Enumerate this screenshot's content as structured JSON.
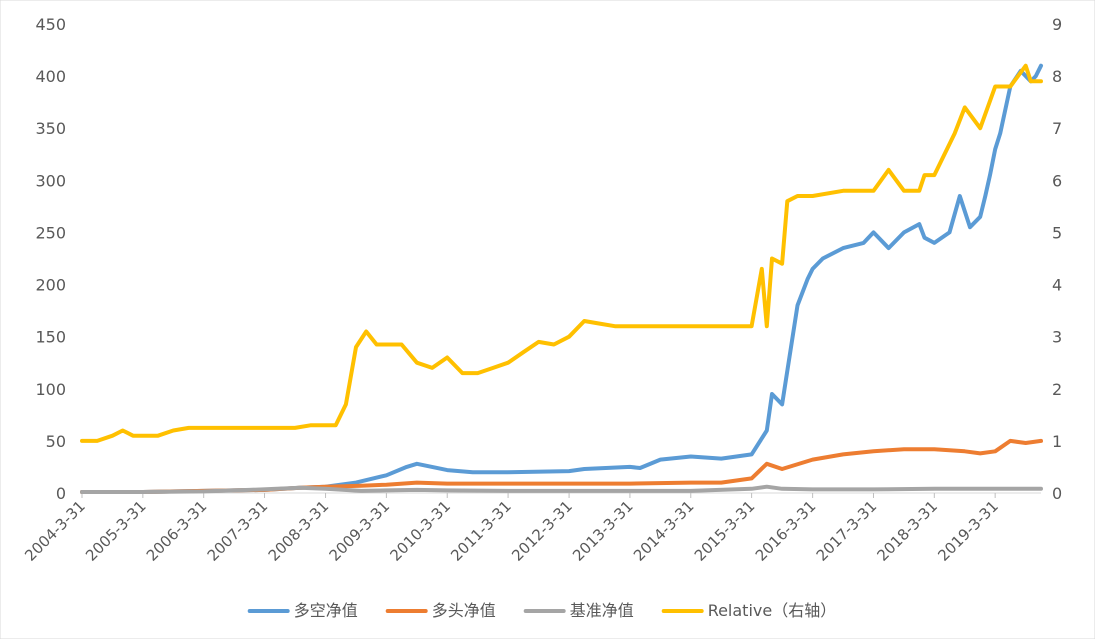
{
  "chart_data": {
    "type": "line",
    "title": "",
    "x_ticks": [
      "2004-3-31",
      "2005-3-31",
      "2006-3-31",
      "2007-3-31",
      "2008-3-31",
      "2009-3-31",
      "2010-3-31",
      "2011-3-31",
      "2012-3-31",
      "2013-3-31",
      "2014-3-31",
      "2015-3-31",
      "2016-3-31",
      "2017-3-31",
      "2018-3-31",
      "2019-3-31"
    ],
    "xlim": [
      "2004-3-31",
      "2019-12-31"
    ],
    "ylim_left": [
      0,
      450
    ],
    "yticks_left": [
      0,
      50,
      100,
      150,
      200,
      250,
      300,
      350,
      400,
      450
    ],
    "ylim_right": [
      0,
      9
    ],
    "yticks_right": [
      0,
      1,
      2,
      3,
      4,
      5,
      6,
      7,
      8,
      9
    ],
    "grid": false,
    "legend_position": "bottom",
    "series": [
      {
        "name": "多空净值",
        "axis": "left",
        "color": "#5B9BD5",
        "x": [
          "2004-3-31",
          "2005-3-31",
          "2006-3-31",
          "2007-3-31",
          "2007-10-31",
          "2008-3-31",
          "2008-9-30",
          "2009-3-31",
          "2009-7-31",
          "2009-9-30",
          "2010-3-31",
          "2010-8-31",
          "2011-3-31",
          "2012-3-31",
          "2012-6-30",
          "2013-3-31",
          "2013-5-31",
          "2013-9-30",
          "2014-3-31",
          "2014-9-30",
          "2015-3-31",
          "2015-6-30",
          "2015-7-31",
          "2015-9-30",
          "2015-12-31",
          "2016-2-29",
          "2016-3-31",
          "2016-5-31",
          "2016-9-30",
          "2017-1-31",
          "2017-3-31",
          "2017-6-30",
          "2017-9-30",
          "2017-12-31",
          "2018-1-31",
          "2018-3-31",
          "2018-6-30",
          "2018-8-31",
          "2018-10-31",
          "2018-12-31",
          "2019-1-31",
          "2019-2-28",
          "2019-3-31",
          "2019-4-30",
          "2019-6-30",
          "2019-8-31",
          "2019-10-31",
          "2019-11-30",
          "2019-12-31"
        ],
        "values": [
          1,
          1,
          2,
          3,
          5,
          6,
          10,
          17,
          25,
          28,
          22,
          20,
          20,
          21,
          23,
          25,
          24,
          32,
          35,
          33,
          37,
          60,
          95,
          85,
          180,
          205,
          215,
          225,
          235,
          240,
          250,
          235,
          250,
          258,
          245,
          240,
          250,
          285,
          255,
          265,
          285,
          305,
          330,
          345,
          390,
          405,
          395,
          400,
          410
        ]
      },
      {
        "name": "多头净值",
        "axis": "left",
        "color": "#ED7D31",
        "x": [
          "2004-3-31",
          "2005-3-31",
          "2006-3-31",
          "2007-3-31",
          "2007-10-31",
          "2008-3-31",
          "2008-10-31",
          "2009-3-31",
          "2009-9-30",
          "2010-3-31",
          "2011-3-31",
          "2012-3-31",
          "2013-3-31",
          "2014-3-31",
          "2014-9-30",
          "2015-3-31",
          "2015-6-30",
          "2015-9-30",
          "2016-3-31",
          "2016-9-30",
          "2017-3-31",
          "2017-9-30",
          "2018-3-31",
          "2018-9-30",
          "2018-12-31",
          "2019-3-31",
          "2019-6-30",
          "2019-9-30",
          "2019-12-31"
        ],
        "values": [
          1,
          1,
          2,
          3,
          5,
          6,
          7,
          8,
          10,
          9,
          9,
          9,
          9,
          10,
          10,
          14,
          28,
          23,
          32,
          37,
          40,
          42,
          42,
          40,
          38,
          40,
          50,
          48,
          50
        ]
      },
      {
        "name": "基准净值",
        "axis": "left",
        "color": "#A5A5A5",
        "x": [
          "2004-3-31",
          "2005-3-31",
          "2006-3-31",
          "2006-12-31",
          "2007-10-31",
          "2008-3-31",
          "2008-10-31",
          "2009-3-31",
          "2009-9-30",
          "2010-3-31",
          "2011-3-31",
          "2012-3-31",
          "2013-3-31",
          "2014-3-31",
          "2015-3-31",
          "2015-6-30",
          "2015-9-30",
          "2016-3-31",
          "2017-3-31",
          "2018-3-31",
          "2019-3-31",
          "2019-12-31"
        ],
        "values": [
          1,
          1,
          1.5,
          3,
          5,
          4,
          2,
          2.5,
          3,
          2.5,
          2,
          2,
          2,
          2,
          4,
          6,
          4,
          3.5,
          3.5,
          4,
          4,
          4
        ]
      },
      {
        "name": "Relative（右轴）",
        "axis": "right",
        "color": "#FFC000",
        "x": [
          "2004-3-31",
          "2004-6-30",
          "2004-9-30",
          "2004-11-30",
          "2005-1-31",
          "2005-3-31",
          "2005-6-30",
          "2005-9-30",
          "2005-12-31",
          "2006-3-31",
          "2007-3-31",
          "2007-9-30",
          "2007-12-31",
          "2008-2-29",
          "2008-3-31",
          "2008-5-31",
          "2008-7-31",
          "2008-9-30",
          "2008-11-30",
          "2009-1-31",
          "2009-3-31",
          "2009-6-30",
          "2009-9-30",
          "2009-12-31",
          "2010-3-31",
          "2010-6-30",
          "2010-9-30",
          "2010-12-31",
          "2011-3-31",
          "2011-6-30",
          "2011-9-30",
          "2011-12-31",
          "2012-3-31",
          "2012-6-30",
          "2012-9-30",
          "2012-12-31",
          "2013-3-31",
          "2013-6-30",
          "2013-9-30",
          "2014-3-31",
          "2014-9-30",
          "2015-3-31",
          "2015-5-31",
          "2015-6-30",
          "2015-7-31",
          "2015-9-30",
          "2015-10-31",
          "2015-12-31",
          "2016-3-31",
          "2016-9-30",
          "2017-3-31",
          "2017-6-30",
          "2017-9-30",
          "2017-12-31",
          "2018-1-31",
          "2018-3-31",
          "2018-5-31",
          "2018-7-31",
          "2018-9-30",
          "2018-12-31",
          "2019-3-31",
          "2019-6-30",
          "2019-9-30",
          "2019-10-31",
          "2019-12-31"
        ],
        "values": [
          1,
          1,
          1.1,
          1.2,
          1.1,
          1.1,
          1.1,
          1.2,
          1.25,
          1.25,
          1.25,
          1.25,
          1.3,
          1.3,
          1.3,
          1.3,
          1.7,
          2.8,
          3.1,
          2.85,
          2.85,
          2.85,
          2.5,
          2.4,
          2.6,
          2.3,
          2.3,
          2.4,
          2.5,
          2.7,
          2.9,
          2.85,
          3.0,
          3.3,
          3.25,
          3.2,
          3.2,
          3.2,
          3.2,
          3.2,
          3.2,
          3.2,
          4.3,
          3.2,
          4.5,
          4.4,
          5.6,
          5.7,
          5.7,
          5.8,
          5.8,
          6.2,
          5.8,
          5.8,
          6.1,
          6.1,
          6.5,
          6.9,
          7.4,
          7.0,
          7.8,
          7.8,
          8.2,
          7.9,
          7.9
        ]
      }
    ]
  }
}
